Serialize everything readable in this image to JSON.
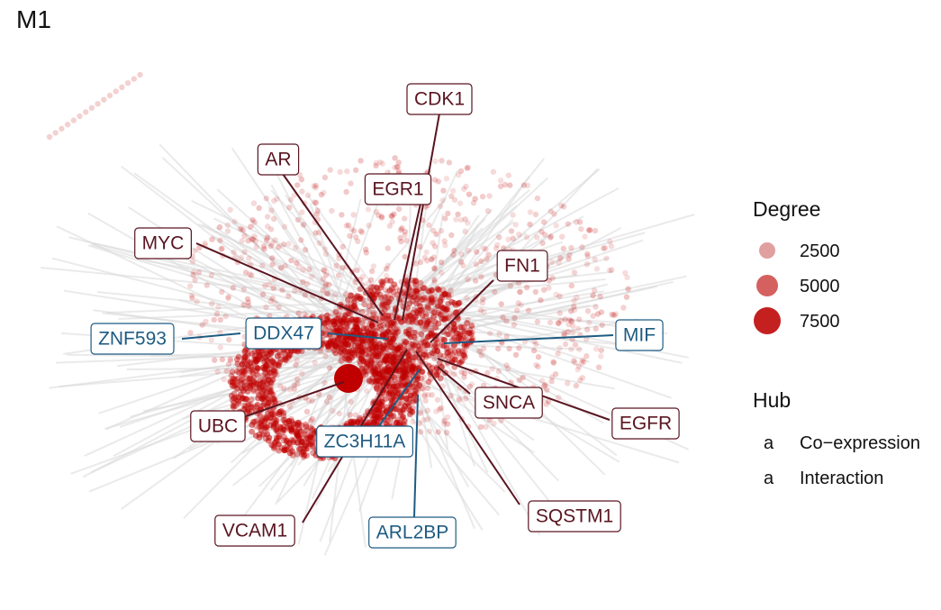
{
  "title": "M1",
  "colors": {
    "interaction": "#5a1520",
    "coexpression": "#1e5b82",
    "node": "#c00000",
    "edge": "#d9d9d9"
  },
  "hubs": [
    {
      "name": "CDK1",
      "type": "interaction"
    },
    {
      "name": "AR",
      "type": "interaction"
    },
    {
      "name": "EGR1",
      "type": "interaction"
    },
    {
      "name": "MYC",
      "type": "interaction"
    },
    {
      "name": "FN1",
      "type": "interaction"
    },
    {
      "name": "ZNF593",
      "type": "coexpression"
    },
    {
      "name": "DDX47",
      "type": "coexpression"
    },
    {
      "name": "MIF",
      "type": "coexpression"
    },
    {
      "name": "SNCA",
      "type": "interaction"
    },
    {
      "name": "EGFR",
      "type": "interaction"
    },
    {
      "name": "UBC",
      "type": "interaction"
    },
    {
      "name": "ZC3H11A",
      "type": "coexpression"
    },
    {
      "name": "VCAM1",
      "type": "interaction"
    },
    {
      "name": "ARL2BP",
      "type": "coexpression"
    },
    {
      "name": "SQSTM1",
      "type": "interaction"
    }
  ],
  "legend": {
    "degree_title": "Degree",
    "degree_items": [
      {
        "label": "2500",
        "value": 2500
      },
      {
        "label": "5000",
        "value": 5000
      },
      {
        "label": "7500",
        "value": 7500
      }
    ],
    "hub_title": "Hub",
    "hub_items": [
      {
        "glyph": "a",
        "label": "Co−expression",
        "type": "coexpression"
      },
      {
        "glyph": "a",
        "label": "Interaction",
        "type": "interaction"
      }
    ]
  }
}
